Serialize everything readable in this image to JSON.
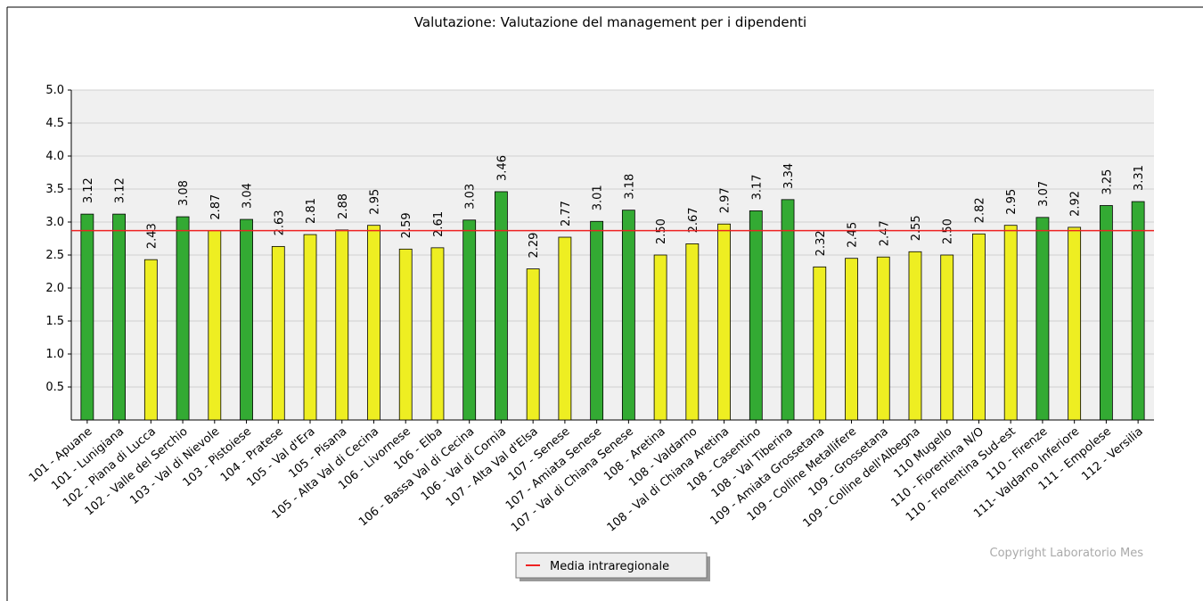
{
  "chart_data": {
    "type": "bar",
    "title": "Valutazione: Valutazione del management per i dipendenti",
    "categories": [
      "101 - Apuane",
      "101 - Lunigiana",
      "102 - Piana di Lucca",
      "102 - Valle del Serchio",
      "103 - Val di Nievole",
      "103 - Pistoiese",
      "104 - Pratese",
      "105 - Val d'Era",
      "105 - Pisana",
      "105 - Alta Val di Cecina",
      "106 - Livornese",
      "106 - Elba",
      "106 - Bassa Val di Cecina",
      "106 - Val di Cornia",
      "107 - Alta Val d'Elsa",
      "107 - Senese",
      "107 - Amiata Senese",
      "107 - Val di Chiana Senese",
      "108 - Aretina",
      "108 - Valdarno",
      "108 - Val di Chiana Aretina",
      "108 - Casentino",
      "108 - Val Tiberina",
      "109 - Amiata Grossetana",
      "109 - Colline Metallifere",
      "109 - Grossetana",
      "109 - Colline dell'Albegna",
      "110 Mugello",
      "110 - Fiorentina N/O",
      "110 - Fiorentina Sud-est",
      "110 - Firenze",
      "111- Valdarno Inferiore",
      "111 - Empolese",
      "112 - Versilia"
    ],
    "values": [
      3.12,
      3.12,
      2.43,
      3.08,
      2.87,
      3.04,
      2.63,
      2.81,
      2.88,
      2.95,
      2.59,
      2.61,
      3.03,
      3.46,
      2.29,
      2.77,
      3.01,
      3.18,
      2.5,
      2.67,
      2.97,
      3.17,
      3.34,
      2.32,
      2.45,
      2.47,
      2.55,
      2.5,
      2.82,
      2.95,
      3.07,
      2.92,
      3.25,
      3.31
    ],
    "value_labels": [
      "3.12",
      "3.12",
      "2.43",
      "3.08",
      "2.87",
      "3.04",
      "2.63",
      "2.81",
      "2.88",
      "2.95",
      "2.59",
      "2.61",
      "3.03",
      "3.46",
      "2.29",
      "2.77",
      "3.01",
      "3.18",
      "2.50",
      "2.67",
      "2.97",
      "3.17",
      "3.34",
      "2.32",
      "2.45",
      "2.47",
      "2.55",
      "2.50",
      "2.82",
      "2.95",
      "3.07",
      "2.92",
      "3.25",
      "3.31"
    ],
    "colors": [
      "#33aa33",
      "#33aa33",
      "#eeee22",
      "#33aa33",
      "#eeee22",
      "#33aa33",
      "#eeee22",
      "#eeee22",
      "#eeee22",
      "#eeee22",
      "#eeee22",
      "#eeee22",
      "#33aa33",
      "#33aa33",
      "#eeee22",
      "#eeee22",
      "#33aa33",
      "#33aa33",
      "#eeee22",
      "#eeee22",
      "#eeee22",
      "#33aa33",
      "#33aa33",
      "#eeee22",
      "#eeee22",
      "#eeee22",
      "#eeee22",
      "#eeee22",
      "#eeee22",
      "#eeee22",
      "#33aa33",
      "#eeee22",
      "#33aa33",
      "#33aa33"
    ],
    "reference_line": {
      "name": "Media intraregionale",
      "value": 2.87,
      "color": "#ee2222"
    },
    "ylim": [
      0,
      5
    ],
    "yticks": [
      {
        "value": 0.5,
        "label": "0.5"
      },
      {
        "value": 1,
        "label": "1.0"
      },
      {
        "value": 1.5,
        "label": "1.5"
      },
      {
        "value": 2,
        "label": "2.0"
      },
      {
        "value": 2.5,
        "label": "2.5"
      },
      {
        "value": 3,
        "label": "3.0"
      },
      {
        "value": 3.5,
        "label": "3.5"
      },
      {
        "value": 4,
        "label": "4.0"
      },
      {
        "value": 4.5,
        "label": "4.5"
      },
      {
        "value": 5,
        "label": "5.0"
      }
    ],
    "grid": true,
    "annotation": "Copyright Laboratorio Mes"
  }
}
